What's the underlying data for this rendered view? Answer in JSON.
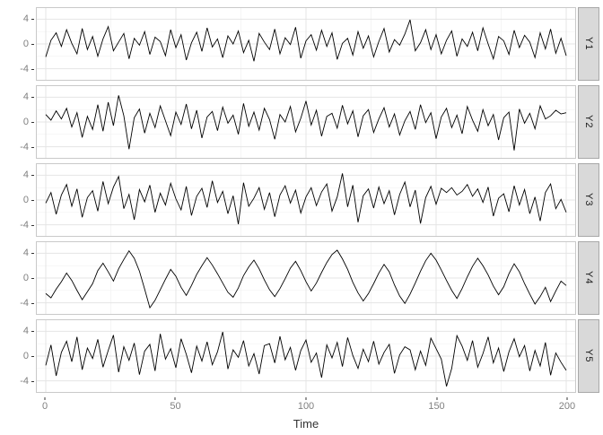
{
  "colors": {
    "background": "#ffffff",
    "panel_border": "#c9c9c9",
    "grid_major": "#e4e4e4",
    "grid_minor": "#f3f3f3",
    "strip_fill": "#d9d9d9",
    "strip_border": "#a8a8a8",
    "line": "#000000",
    "tick_label": "#808080",
    "axis_title": "#333333"
  },
  "chart_data": {
    "type": "line",
    "title": "",
    "xlabel": "Time",
    "ylabel": "",
    "grid": true,
    "legend": false,
    "facet_position": "right",
    "x_range": [
      0,
      200
    ],
    "y_range": [
      -5.8,
      5.8
    ],
    "x_ticks": [
      0,
      50,
      100,
      150,
      200
    ],
    "x_minor_ticks": [
      25,
      75,
      125,
      175
    ],
    "y_grid": [
      -4,
      0,
      4
    ],
    "y_minor_grid": [
      -2,
      2
    ],
    "y_tick_labels": [
      "4",
      "0",
      "-4"
    ],
    "x_step": 2,
    "facets": [
      {
        "label": "Y1",
        "values": [
          -2.1,
          0.6,
          1.8,
          -0.4,
          2.3,
          0.1,
          -1.6,
          2.5,
          -0.9,
          1.2,
          -2.0,
          0.8,
          2.8,
          -1.1,
          0.3,
          1.7,
          -2.4,
          0.9,
          -0.2,
          2.0,
          -1.7,
          1.1,
          0.4,
          -1.9,
          2.3,
          -0.6,
          1.5,
          -2.6,
          0.2,
          1.9,
          -1.2,
          2.6,
          -0.5,
          0.8,
          -2.2,
          1.3,
          0.0,
          2.1,
          -1.4,
          0.6,
          -2.8,
          1.7,
          0.3,
          -0.9,
          2.4,
          -1.6,
          1.0,
          -0.1,
          2.7,
          -2.3,
          0.5,
          1.5,
          -1.0,
          2.2,
          -0.4,
          1.8,
          -2.5,
          0.1,
          0.9,
          -1.8,
          2.0,
          -0.7,
          1.3,
          -2.1,
          0.4,
          2.5,
          -1.3,
          0.7,
          -0.2,
          1.6,
          3.9,
          -1.1,
          0.2,
          2.3,
          -0.9,
          1.5,
          -1.6,
          0.6,
          2.1,
          -2.0,
          0.8,
          -0.4,
          1.9,
          -1.1,
          2.6,
          0.0,
          -2.4,
          1.2,
          0.5,
          -1.7,
          2.2,
          -0.6,
          1.4,
          0.3,
          -2.2,
          1.8,
          -0.8,
          2.4,
          -1.5,
          0.9,
          -1.9
        ]
      },
      {
        "label": "Y2",
        "values": [
          1.2,
          0.3,
          1.8,
          0.5,
          2.2,
          -0.8,
          1.5,
          -2.5,
          0.9,
          -1.2,
          2.8,
          -1.5,
          3.2,
          -0.6,
          4.3,
          1.0,
          -4.4,
          0.7,
          2.1,
          -1.8,
          1.4,
          -0.9,
          2.6,
          0.2,
          -2.2,
          1.6,
          -0.4,
          2.9,
          -1.1,
          1.9,
          -2.6,
          0.8,
          1.7,
          -1.4,
          2.4,
          -0.2,
          1.1,
          -2.0,
          3.0,
          -0.7,
          1.6,
          -1.3,
          2.2,
          0.4,
          -2.8,
          1.2,
          0.0,
          2.5,
          -1.6,
          0.6,
          3.4,
          -0.5,
          1.9,
          -2.3,
          0.9,
          1.4,
          -1.0,
          2.7,
          -0.3,
          1.8,
          -2.4,
          1.0,
          2.0,
          -1.7,
          0.5,
          2.3,
          -0.8,
          1.3,
          -2.1,
          0.2,
          1.7,
          -1.2,
          2.8,
          -0.1,
          1.5,
          -2.7,
          0.8,
          2.2,
          -0.9,
          1.1,
          -1.9,
          2.5,
          0.3,
          -1.5,
          2.0,
          -0.6,
          1.2,
          -2.9,
          0.7,
          1.6,
          -4.6,
          2.1,
          -0.2,
          1.4,
          -1.1,
          2.6,
          0.5,
          1.0,
          1.9,
          1.3,
          1.5
        ]
      },
      {
        "label": "Y3",
        "values": [
          -0.5,
          1.2,
          -2.3,
          0.8,
          2.5,
          -1.0,
          1.8,
          -2.8,
          0.4,
          1.5,
          -1.8,
          3.0,
          -0.6,
          2.1,
          3.8,
          -1.4,
          0.9,
          -3.2,
          1.7,
          -0.3,
          2.4,
          -2.0,
          1.1,
          -0.8,
          2.7,
          0.2,
          -1.6,
          2.2,
          -2.5,
          0.6,
          1.9,
          -1.2,
          3.1,
          -0.4,
          1.4,
          -2.2,
          0.7,
          -3.9,
          2.8,
          -1.0,
          0.3,
          2.0,
          -1.5,
          1.2,
          -2.7,
          0.8,
          2.3,
          -0.5,
          1.6,
          -2.1,
          0.5,
          2.0,
          -0.9,
          1.3,
          2.6,
          -1.8,
          0.5,
          4.3,
          -1.1,
          2.4,
          -3.6,
          0.7,
          1.8,
          -1.3,
          2.1,
          -0.6,
          1.5,
          -2.4,
          0.9,
          2.9,
          -1.1,
          1.6,
          -3.8,
          0.4,
          2.2,
          -0.7,
          1.9,
          1.2,
          2.0,
          0.8,
          1.4,
          2.5,
          0.6,
          1.8,
          -0.4,
          2.1,
          -2.6,
          0.3,
          1.0,
          -1.9,
          2.3,
          -0.8,
          1.7,
          -2.2,
          0.5,
          -3.4,
          1.2,
          2.6,
          -1.4,
          0.1,
          -2.0
        ]
      },
      {
        "label": "Y4",
        "values": [
          -2.5,
          -3.2,
          -1.8,
          -0.6,
          0.8,
          -0.4,
          -2.0,
          -3.5,
          -2.2,
          -0.9,
          1.2,
          2.4,
          1.0,
          -0.5,
          1.5,
          3.0,
          4.4,
          3.2,
          1.1,
          -1.8,
          -4.8,
          -3.6,
          -1.9,
          -0.2,
          1.4,
          0.3,
          -1.5,
          -2.8,
          -1.2,
          0.6,
          2.0,
          3.3,
          2.1,
          0.7,
          -0.8,
          -2.3,
          -3.1,
          -1.6,
          0.4,
          1.8,
          2.9,
          1.5,
          -0.3,
          -1.9,
          -3.0,
          -1.7,
          -0.1,
          1.6,
          2.7,
          1.2,
          -0.6,
          -2.1,
          -0.8,
          0.9,
          2.5,
          3.8,
          4.5,
          3.1,
          1.4,
          -0.7,
          -2.4,
          -3.7,
          -2.5,
          -0.9,
          0.8,
          2.2,
          1.0,
          -1.1,
          -2.9,
          -4.1,
          -2.6,
          -0.8,
          1.1,
          2.8,
          4.0,
          2.9,
          1.3,
          -0.4,
          -2.0,
          -3.3,
          -1.7,
          0.2,
          1.9,
          3.2,
          2.0,
          0.5,
          -1.3,
          -2.7,
          -1.4,
          0.7,
          2.3,
          1.0,
          -0.9,
          -2.6,
          -4.2,
          -3.0,
          -1.5,
          -3.8,
          -2.1,
          -0.5,
          -1.2
        ]
      },
      {
        "label": "Y5",
        "values": [
          -1.5,
          1.8,
          -3.2,
          0.6,
          2.4,
          -0.9,
          3.1,
          -2.2,
          1.3,
          -0.4,
          2.7,
          -1.8,
          0.9,
          3.4,
          -2.6,
          1.5,
          -0.7,
          2.1,
          -3.0,
          0.8,
          1.9,
          -2.4,
          3.6,
          -0.5,
          1.2,
          -1.9,
          2.8,
          0.3,
          -2.7,
          1.6,
          -0.8,
          2.3,
          -1.4,
          0.7,
          3.9,
          -2.1,
          1.0,
          -0.2,
          2.5,
          -1.6,
          0.4,
          -2.9,
          1.7,
          2.0,
          -1.1,
          3.2,
          -0.6,
          1.4,
          -2.3,
          0.9,
          2.6,
          -1.0,
          0.5,
          -3.5,
          1.8,
          -0.3,
          2.2,
          -1.7,
          3.0,
          0.1,
          -2.0,
          1.1,
          -0.9,
          2.4,
          -1.3,
          0.6,
          1.9,
          -2.8,
          0.2,
          1.5,
          1.0,
          -2.2,
          0.8,
          -1.5,
          2.9,
          1.2,
          -0.5,
          -4.9,
          -2.0,
          3.3,
          1.6,
          -0.7,
          2.5,
          -1.8,
          0.4,
          3.1,
          -1.1,
          1.3,
          -2.5,
          0.7,
          2.8,
          -0.1,
          1.7,
          -2.4,
          0.9,
          -1.6,
          2.2,
          -3.1,
          0.5,
          -1.0,
          -2.3
        ]
      }
    ]
  }
}
